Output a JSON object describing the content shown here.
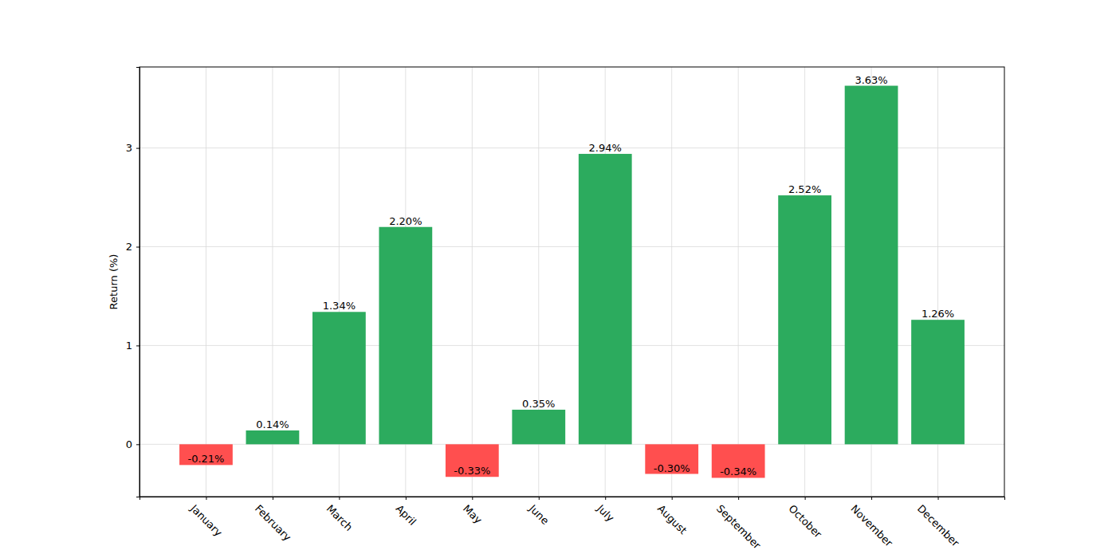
{
  "chart_data": {
    "type": "bar",
    "y_label": "Return (%)",
    "categories": [
      "January",
      "February",
      "March",
      "April",
      "May",
      "June",
      "July",
      "August",
      "September",
      "October",
      "November",
      "December"
    ],
    "values": [
      -0.21,
      0.14,
      1.34,
      2.2,
      -0.33,
      0.35,
      2.94,
      -0.3,
      -0.34,
      2.52,
      3.63,
      1.26
    ],
    "value_labels": [
      "-0.21%",
      "0.14%",
      "1.34%",
      "2.20%",
      "-0.33%",
      "0.35%",
      "2.94%",
      "-0.30%",
      "-0.34%",
      "2.52%",
      "3.63%",
      "1.26%"
    ],
    "colors": [
      "#ff4f4f",
      "#2cab5e",
      "#2cab5e",
      "#2cab5e",
      "#ff4f4f",
      "#2cab5e",
      "#2cab5e",
      "#ff4f4f",
      "#ff4f4f",
      "#2cab5e",
      "#2cab5e",
      "#2cab5e"
    ],
    "ylim": [
      -0.53,
      3.82
    ],
    "yticks": [
      0,
      1,
      2,
      3
    ],
    "grid": true,
    "data_labels": true
  }
}
